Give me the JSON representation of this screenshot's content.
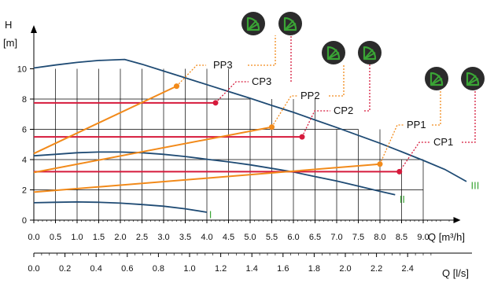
{
  "chart_data": {
    "type": "line",
    "ylabel_symbol": "H",
    "yunit": "[m]",
    "xlabel": "Q [m³/h]",
    "x2label": "Q [l/s]",
    "xlim": [
      0,
      10
    ],
    "ylim": [
      0,
      12
    ],
    "x_ticks": [
      "0.0",
      "0.5",
      "1.0",
      "1.5",
      "2.0",
      "2.5",
      "3.0",
      "3.5",
      "4.0",
      "4.5",
      "5.0",
      "5.5",
      "6.0",
      "6.5",
      "7.0",
      "7.5",
      "8.0",
      "8.5",
      "9.0"
    ],
    "x2_ticks": [
      "0.0",
      "0.2",
      "0.4",
      "0.6",
      "0.8",
      "1.0",
      "1.2",
      "1.4",
      "1.6",
      "1.8",
      "2.0",
      "2.2",
      "2.4"
    ],
    "y_ticks": [
      "0",
      "2",
      "4",
      "6",
      "8",
      "10"
    ],
    "colors": {
      "speed_curve": "#1f4b74",
      "proportional": "#f28a1a",
      "constant": "#d61a3c",
      "grid": "#000000",
      "label_green": "#3aa535",
      "icon_bg": "#2b2b2b",
      "icon_fg": "#3aa535"
    },
    "speed_curves": [
      {
        "label": "I",
        "points": [
          [
            0,
            1.15
          ],
          [
            0.5,
            1.18
          ],
          [
            1,
            1.2
          ],
          [
            1.5,
            1.18
          ],
          [
            2,
            1.12
          ],
          [
            2.5,
            1.03
          ],
          [
            3,
            0.92
          ],
          [
            3.5,
            0.75
          ],
          [
            4,
            0.52
          ]
        ]
      },
      {
        "label": "II",
        "points": [
          [
            0,
            4.25
          ],
          [
            0.5,
            4.35
          ],
          [
            1,
            4.45
          ],
          [
            1.5,
            4.5
          ],
          [
            2,
            4.5
          ],
          [
            2.5,
            4.45
          ],
          [
            3,
            4.35
          ],
          [
            3.5,
            4.2
          ],
          [
            4,
            4.02
          ],
          [
            4.5,
            3.85
          ],
          [
            5,
            3.65
          ],
          [
            5.5,
            3.42
          ],
          [
            6,
            3.18
          ],
          [
            6.5,
            2.88
          ],
          [
            7,
            2.58
          ],
          [
            7.5,
            2.25
          ],
          [
            8,
            1.9
          ],
          [
            8.35,
            1.68
          ]
        ]
      },
      {
        "label": "III",
        "points": [
          [
            0,
            10.05
          ],
          [
            0.5,
            10.25
          ],
          [
            1,
            10.42
          ],
          [
            1.5,
            10.55
          ],
          [
            2.1,
            10.62
          ],
          [
            2.5,
            10.3
          ],
          [
            3,
            9.85
          ],
          [
            3.5,
            9.4
          ],
          [
            4,
            8.95
          ],
          [
            4.5,
            8.5
          ],
          [
            5,
            8.05
          ],
          [
            5.5,
            7.58
          ],
          [
            6,
            7.12
          ],
          [
            6.5,
            6.62
          ],
          [
            7,
            6.12
          ],
          [
            7.5,
            5.6
          ],
          [
            8,
            5.08
          ],
          [
            8.5,
            4.52
          ],
          [
            9,
            3.95
          ],
          [
            9.5,
            3.35
          ],
          [
            10,
            2.55
          ]
        ]
      }
    ],
    "pp_lines": [
      {
        "label": "PP1",
        "points": [
          [
            0,
            1.85
          ],
          [
            8.0,
            3.7
          ]
        ],
        "marker": [
          8.0,
          3.7
        ]
      },
      {
        "label": "PP2",
        "points": [
          [
            0,
            3.15
          ],
          [
            5.5,
            6.15
          ]
        ],
        "marker": [
          5.5,
          6.15
        ]
      },
      {
        "label": "PP3",
        "points": [
          [
            0,
            4.4
          ],
          [
            3.3,
            8.85
          ]
        ],
        "marker": [
          3.3,
          8.85
        ]
      }
    ],
    "cp_lines": [
      {
        "label": "CP1",
        "y": 3.2,
        "x_end": 8.45,
        "marker": [
          8.45,
          3.2
        ]
      },
      {
        "label": "CP2",
        "y": 5.5,
        "x_end": 6.2,
        "marker": [
          6.2,
          5.5
        ]
      },
      {
        "label": "CP3",
        "y": 7.75,
        "x_end": 4.2,
        "marker": [
          4.2,
          7.75
        ]
      }
    ]
  }
}
